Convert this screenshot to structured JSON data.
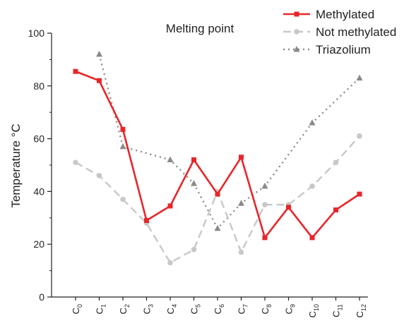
{
  "chart_data": {
    "type": "line",
    "title": "Melting point",
    "ylabel": "Temperature °C",
    "xlabel": "",
    "ylim": [
      0,
      100
    ],
    "yticks": [
      0,
      20,
      40,
      60,
      80,
      100
    ],
    "grid": false,
    "legend_position": "top-right",
    "categories": [
      {
        "base": "C",
        "sub": "0"
      },
      {
        "base": "C",
        "sub": "1"
      },
      {
        "base": "C",
        "sub": "2"
      },
      {
        "base": "C",
        "sub": "3"
      },
      {
        "base": "C",
        "sub": "4"
      },
      {
        "base": "C",
        "sub": "5"
      },
      {
        "base": "C",
        "sub": "6"
      },
      {
        "base": "C",
        "sub": "7"
      },
      {
        "base": "C",
        "sub": "8"
      },
      {
        "base": "C",
        "sub": "9"
      },
      {
        "base": "C",
        "sub": "10"
      },
      {
        "base": "C",
        "sub": "11"
      },
      {
        "base": "C",
        "sub": "12"
      }
    ],
    "series": [
      {
        "name": "Methylated",
        "color": "#e8262a",
        "line": "solid",
        "marker": "square",
        "values": [
          85.5,
          82,
          63.5,
          29,
          34.5,
          52,
          39,
          53,
          22.5,
          34,
          22.5,
          33,
          39
        ]
      },
      {
        "name": "Not methylated",
        "color": "#c8c8c8",
        "line": "dashed",
        "marker": "circle",
        "values": [
          51,
          46,
          37,
          28,
          13,
          18,
          40,
          17,
          35,
          35,
          42,
          51,
          61
        ]
      },
      {
        "name": "Triazolium",
        "color": "#8a8a8a",
        "line": "dotted",
        "marker": "triangle",
        "values": [
          null,
          92,
          57,
          null,
          52,
          43,
          26,
          35.5,
          42,
          null,
          66,
          null,
          83
        ]
      }
    ]
  }
}
